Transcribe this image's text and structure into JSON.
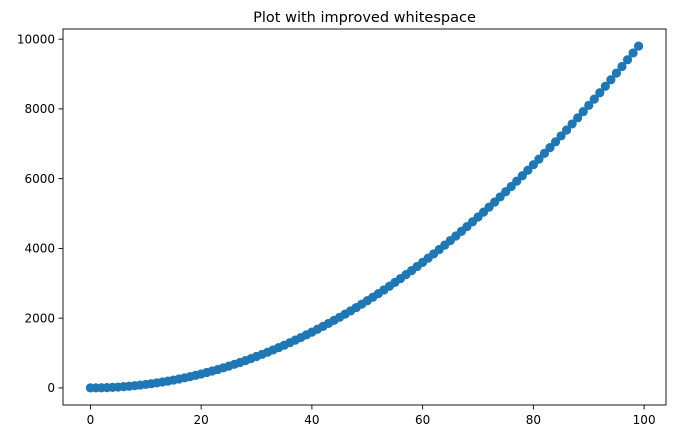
{
  "chart_data": {
    "type": "scatter",
    "title": "Plot with improved whitespace",
    "xlabel": "",
    "ylabel": "",
    "xlim": [
      -4.95,
      103.95
    ],
    "ylim": [
      -490.05,
      10291.05
    ],
    "x_ticks": [
      0,
      20,
      40,
      60,
      80,
      100
    ],
    "y_ticks": [
      0,
      2000,
      4000,
      6000,
      8000,
      10000
    ],
    "grid": false,
    "marker_color": "#1f77b4",
    "series": [
      {
        "x": [
          0,
          1,
          2,
          3,
          4,
          5,
          6,
          7,
          8,
          9,
          10,
          11,
          12,
          13,
          14,
          15,
          16,
          17,
          18,
          19,
          20,
          21,
          22,
          23,
          24,
          25,
          26,
          27,
          28,
          29,
          30,
          31,
          32,
          33,
          34,
          35,
          36,
          37,
          38,
          39,
          40,
          41,
          42,
          43,
          44,
          45,
          46,
          47,
          48,
          49,
          50,
          51,
          52,
          53,
          54,
          55,
          56,
          57,
          58,
          59,
          60,
          61,
          62,
          63,
          64,
          65,
          66,
          67,
          68,
          69,
          70,
          71,
          72,
          73,
          74,
          75,
          76,
          77,
          78,
          79,
          80,
          81,
          82,
          83,
          84,
          85,
          86,
          87,
          88,
          89,
          90,
          91,
          92,
          93,
          94,
          95,
          96,
          97,
          98,
          99
        ],
        "y": [
          0,
          1,
          4,
          9,
          16,
          25,
          36,
          49,
          64,
          81,
          100,
          121,
          144,
          169,
          196,
          225,
          256,
          289,
          324,
          361,
          400,
          441,
          484,
          529,
          576,
          625,
          676,
          729,
          784,
          841,
          900,
          961,
          1024,
          1089,
          1156,
          1225,
          1296,
          1369,
          1444,
          1521,
          1600,
          1681,
          1764,
          1849,
          1936,
          2025,
          2116,
          2209,
          2304,
          2401,
          2500,
          2601,
          2704,
          2809,
          2916,
          3025,
          3136,
          3249,
          3364,
          3481,
          3600,
          3721,
          3844,
          3969,
          4096,
          4225,
          4356,
          4489,
          4624,
          4761,
          4900,
          5041,
          5184,
          5329,
          5476,
          5625,
          5776,
          5929,
          6084,
          6241,
          6400,
          6561,
          6724,
          6889,
          7056,
          7225,
          7396,
          7569,
          7744,
          7921,
          8100,
          8281,
          8464,
          8649,
          8836,
          9025,
          9216,
          9409,
          9604,
          9801
        ]
      }
    ]
  }
}
